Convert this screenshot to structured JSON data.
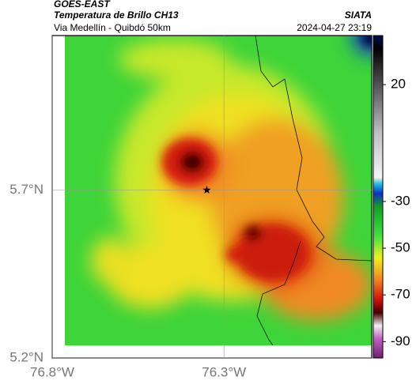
{
  "header": {
    "source": "GOES-EAST",
    "title": "Temperatura de Brillo CH13",
    "brand": "SIATA",
    "subtitle": "Via Medellín - Quibdó 50km",
    "timestamp": "2024-04-27 23:19"
  },
  "map": {
    "xlim": [
      -76.8,
      -75.87
    ],
    "ylim": [
      5.2,
      6.16
    ],
    "xticks": [
      {
        "value": -76.8,
        "label": "76.8°W"
      },
      {
        "value": -76.3,
        "label": "76.3°W"
      }
    ],
    "yticks": [
      {
        "value": 5.2,
        "label": "5.2°N"
      },
      {
        "value": 5.7,
        "label": "5.7°N"
      }
    ],
    "grid": true,
    "marker": {
      "lon": -76.35,
      "lat": 5.7
    }
  },
  "colorbar": {
    "lim": [
      -97,
      41
    ],
    "ticks": [
      20,
      -30,
      -50,
      -70,
      -90
    ]
  }
}
